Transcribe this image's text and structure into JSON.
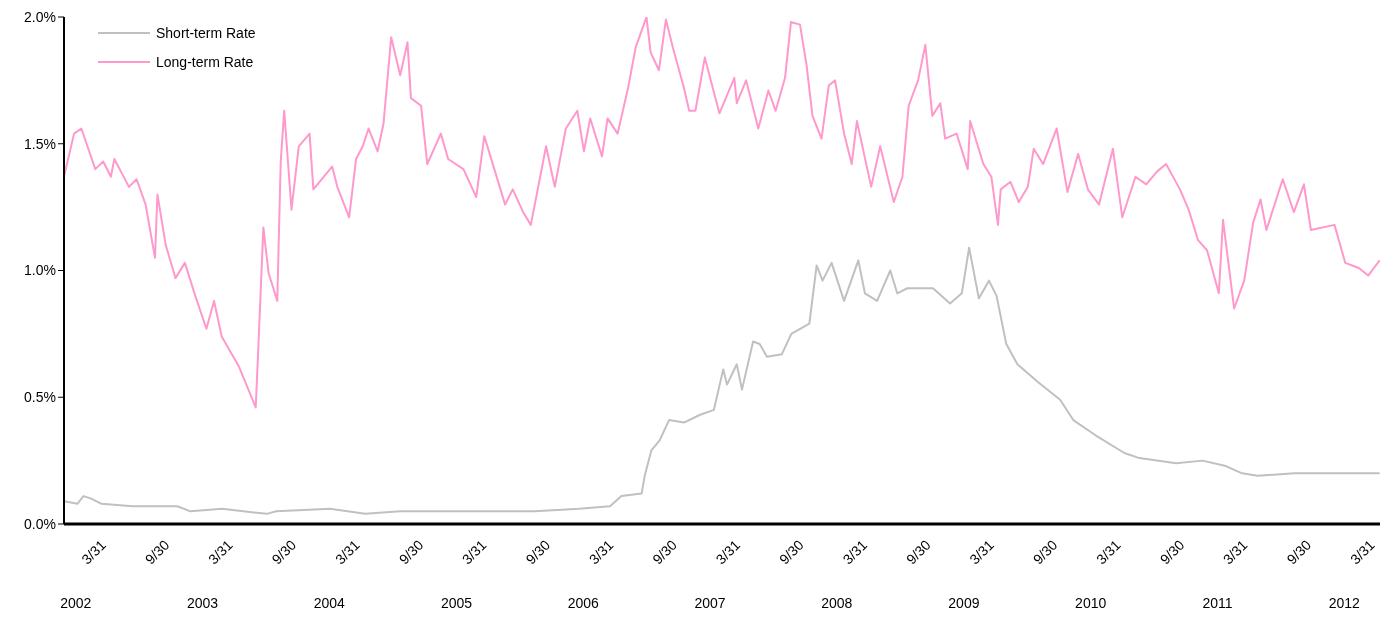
{
  "chart_data": {
    "type": "line",
    "legend": "top left",
    "marker": "none",
    "line_style": "solid",
    "xlim": [
      "2001-11-28",
      "2012-04-13"
    ],
    "x2lim": [
      "2001-11-28",
      "2012-04-13"
    ],
    "ylim": [
      0,
      2
    ],
    "yticks": [
      {
        "value": 0,
        "label": "0.0%"
      },
      {
        "value": 0.5,
        "label": "0.5%"
      },
      {
        "value": 1,
        "label": "1.0%"
      },
      {
        "value": 1.5,
        "label": "1.5%"
      },
      {
        "value": 2,
        "label": "2.0%"
      }
    ],
    "xticks": [
      {
        "value": "2002-03-31",
        "label": "3/31"
      },
      {
        "value": "2002-09-30",
        "label": "9/30"
      },
      {
        "value": "2003-03-31",
        "label": "3/31"
      },
      {
        "value": "2003-09-30",
        "label": "9/30"
      },
      {
        "value": "2004-03-31",
        "label": "3/31"
      },
      {
        "value": "2004-09-30",
        "label": "9/30"
      },
      {
        "value": "2005-03-31",
        "label": "3/31"
      },
      {
        "value": "2005-09-30",
        "label": "9/30"
      },
      {
        "value": "2006-03-31",
        "label": "3/31"
      },
      {
        "value": "2006-09-30",
        "label": "9/30"
      },
      {
        "value": "2007-03-31",
        "label": "3/31"
      },
      {
        "value": "2007-09-30",
        "label": "9/30"
      },
      {
        "value": "2008-03-31",
        "label": "3/31"
      },
      {
        "value": "2008-09-30",
        "label": "9/30"
      },
      {
        "value": "2009-03-31",
        "label": "3/31"
      },
      {
        "value": "2009-09-30",
        "label": "9/30"
      },
      {
        "value": "2010-03-31",
        "label": "3/31"
      },
      {
        "value": "2010-09-30",
        "label": "9/30"
      },
      {
        "value": "2011-03-31",
        "label": "3/31"
      },
      {
        "value": "2011-09-30",
        "label": "9/30"
      },
      {
        "value": "2012-03-31",
        "label": "3/31"
      }
    ],
    "x2ticks": [
      {
        "value": "2002-01-01",
        "label": "2002"
      },
      {
        "value": "2003-01-01",
        "label": "2003"
      },
      {
        "value": "2004-01-01",
        "label": "2004"
      },
      {
        "value": "2005-01-01",
        "label": "2005"
      },
      {
        "value": "2006-01-01",
        "label": "2006"
      },
      {
        "value": "2007-01-01",
        "label": "2007"
      },
      {
        "value": "2008-01-01",
        "label": "2008"
      },
      {
        "value": "2009-01-01",
        "label": "2009"
      },
      {
        "value": "2010-01-01",
        "label": "2010"
      },
      {
        "value": "2011-01-01",
        "label": "2011"
      },
      {
        "value": "2012-01-01",
        "label": "2012"
      }
    ],
    "series": [
      {
        "name": "Short-term Rate",
        "color": "#c0c0c0",
        "x": [
          "2001-11-28",
          "2002-01-06",
          "2002-01-23",
          "2002-02-14",
          "2002-03-15",
          "2002-06-14",
          "2002-09-01",
          "2002-10-20",
          "2002-11-27",
          "2003-02-26",
          "2003-07-05",
          "2003-08-01",
          "2004-01-03",
          "2004-04-13",
          "2004-07-23",
          "2005-08-14",
          "2005-12-20",
          "2006-03-19",
          "2006-04-21",
          "2006-06-18",
          "2006-06-27",
          "2006-07-16",
          "2006-08-09",
          "2006-09-05",
          "2006-10-18",
          "2006-12-02",
          "2007-01-12",
          "2007-02-08",
          "2007-02-19",
          "2007-03-19",
          "2007-04-03",
          "2007-05-05",
          "2007-05-24",
          "2007-06-14",
          "2007-07-27",
          "2007-08-23",
          "2007-10-14",
          "2007-11-04",
          "2007-11-21",
          "2007-12-17",
          "2008-01-22",
          "2008-03-03",
          "2008-03-22",
          "2008-04-26",
          "2008-06-03",
          "2008-06-23",
          "2008-07-22",
          "2008-10-04",
          "2008-11-22",
          "2008-12-26",
          "2009-01-16",
          "2009-02-13",
          "2009-03-14",
          "2009-04-05",
          "2009-05-03",
          "2009-06-04",
          "2009-08-02",
          "2009-10-05",
          "2009-11-12",
          "2010-01-15",
          "2010-04-08",
          "2010-05-21",
          "2010-09-04",
          "2010-11-19",
          "2011-01-22",
          "2011-03-13",
          "2011-04-26",
          "2011-08-10",
          "2012-04-12"
        ],
        "values": [
          0.09,
          0.08,
          0.11,
          0.1,
          0.08,
          0.07,
          0.07,
          0.07,
          0.05,
          0.06,
          0.04,
          0.05,
          0.06,
          0.04,
          0.05,
          0.05,
          0.06,
          0.07,
          0.11,
          0.12,
          0.19,
          0.29,
          0.33,
          0.41,
          0.4,
          0.43,
          0.45,
          0.61,
          0.55,
          0.63,
          0.53,
          0.72,
          0.71,
          0.66,
          0.67,
          0.75,
          0.79,
          1.02,
          0.96,
          1.03,
          0.88,
          1.04,
          0.91,
          0.88,
          1.0,
          0.91,
          0.93,
          0.93,
          0.87,
          0.91,
          1.09,
          0.89,
          0.96,
          0.9,
          0.71,
          0.63,
          0.56,
          0.49,
          0.41,
          0.35,
          0.28,
          0.26,
          0.24,
          0.25,
          0.23,
          0.2,
          0.19,
          0.2,
          0.2
        ]
      },
      {
        "name": "Long-term Rate",
        "color": "#ff99cc",
        "x": [
          "2001-11-28",
          "2001-12-27",
          "2002-01-17",
          "2002-02-26",
          "2002-03-21",
          "2002-04-12",
          "2002-04-22",
          "2002-06-03",
          "2002-06-25",
          "2002-07-21",
          "2002-08-17",
          "2002-08-24",
          "2002-09-17",
          "2002-10-15",
          "2002-11-11",
          "2002-12-11",
          "2003-01-12",
          "2003-02-03",
          "2003-02-25",
          "2003-04-16",
          "2003-06-03",
          "2003-06-10",
          "2003-06-25",
          "2003-07-10",
          "2003-08-04",
          "2003-08-14",
          "2003-08-24",
          "2003-09-14",
          "2003-10-05",
          "2003-11-05",
          "2003-11-16",
          "2004-01-09",
          "2004-01-24",
          "2004-02-27",
          "2004-03-18",
          "2004-04-06",
          "2004-04-23",
          "2004-05-19",
          "2004-06-05",
          "2004-06-27",
          "2004-07-23",
          "2004-08-13",
          "2004-08-23",
          "2004-09-21",
          "2004-10-09",
          "2004-11-17",
          "2004-12-08",
          "2005-01-21",
          "2005-02-27",
          "2005-03-22",
          "2005-04-20",
          "2005-05-21",
          "2005-06-12",
          "2005-07-12",
          "2005-08-03",
          "2005-09-16",
          "2005-10-11",
          "2005-11-12",
          "2005-12-15",
          "2006-01-03",
          "2006-01-21",
          "2006-02-24",
          "2006-03-12",
          "2006-04-10",
          "2006-05-10",
          "2006-06-01",
          "2006-07-02",
          "2006-07-14",
          "2006-08-07",
          "2006-08-27",
          "2006-09-16",
          "2006-10-18",
          "2006-11-02",
          "2006-11-20",
          "2006-12-17",
          "2007-01-28",
          "2007-03-12",
          "2007-03-19",
          "2007-04-15",
          "2007-05-20",
          "2007-06-18",
          "2007-07-09",
          "2007-08-05",
          "2007-08-22",
          "2007-09-17",
          "2007-10-06",
          "2007-10-23",
          "2007-11-18",
          "2007-12-09",
          "2007-12-27",
          "2008-01-22",
          "2008-02-13",
          "2008-02-28",
          "2008-04-09",
          "2008-05-05",
          "2008-06-13",
          "2008-07-08",
          "2008-07-26",
          "2008-08-22",
          "2008-09-12",
          "2008-10-02",
          "2008-10-25",
          "2008-11-08",
          "2008-12-11",
          "2009-01-12",
          "2009-01-19",
          "2009-02-26",
          "2009-03-21",
          "2009-04-09",
          "2009-04-17",
          "2009-05-15",
          "2009-06-08",
          "2009-07-04",
          "2009-07-21",
          "2009-08-17",
          "2009-09-25",
          "2009-10-26",
          "2009-11-26",
          "2009-12-24",
          "2010-01-25",
          "2010-03-06",
          "2010-04-02",
          "2010-05-10",
          "2010-06-10",
          "2010-07-11",
          "2010-08-06",
          "2010-09-15",
          "2010-10-10",
          "2010-11-06",
          "2010-12-02",
          "2011-01-05",
          "2011-01-17",
          "2011-02-18",
          "2011-03-19",
          "2011-04-14",
          "2011-05-05",
          "2011-05-22",
          "2011-07-08",
          "2011-08-09",
          "2011-09-07",
          "2011-09-27",
          "2011-12-04",
          "2012-01-04",
          "2012-02-12",
          "2012-03-10",
          "2012-04-12"
        ],
        "values": [
          1.37,
          1.54,
          1.56,
          1.4,
          1.43,
          1.37,
          1.44,
          1.33,
          1.36,
          1.26,
          1.05,
          1.3,
          1.1,
          0.97,
          1.03,
          0.9,
          0.77,
          0.88,
          0.74,
          0.62,
          0.46,
          0.68,
          1.17,
          0.99,
          0.88,
          1.43,
          1.63,
          1.24,
          1.49,
          1.54,
          1.32,
          1.41,
          1.33,
          1.21,
          1.44,
          1.49,
          1.56,
          1.47,
          1.58,
          1.92,
          1.77,
          1.9,
          1.68,
          1.65,
          1.42,
          1.54,
          1.44,
          1.4,
          1.29,
          1.53,
          1.4,
          1.26,
          1.32,
          1.23,
          1.18,
          1.49,
          1.33,
          1.56,
          1.63,
          1.47,
          1.6,
          1.45,
          1.6,
          1.54,
          1.72,
          1.88,
          2.0,
          1.86,
          1.79,
          1.99,
          1.88,
          1.72,
          1.63,
          1.63,
          1.84,
          1.62,
          1.76,
          1.66,
          1.75,
          1.56,
          1.71,
          1.63,
          1.76,
          1.98,
          1.97,
          1.81,
          1.61,
          1.52,
          1.73,
          1.75,
          1.54,
          1.42,
          1.59,
          1.33,
          1.49,
          1.27,
          1.37,
          1.65,
          1.75,
          1.89,
          1.61,
          1.66,
          1.52,
          1.54,
          1.4,
          1.59,
          1.42,
          1.37,
          1.18,
          1.32,
          1.35,
          1.27,
          1.33,
          1.48,
          1.42,
          1.56,
          1.31,
          1.46,
          1.32,
          1.26,
          1.48,
          1.21,
          1.37,
          1.34,
          1.39,
          1.42,
          1.32,
          1.24,
          1.12,
          1.08,
          0.91,
          1.2,
          0.85,
          0.96,
          1.19,
          1.28,
          1.16,
          1.36,
          1.23,
          1.34,
          1.16,
          1.18,
          1.03,
          1.01,
          0.98,
          1.04
        ]
      }
    ]
  }
}
